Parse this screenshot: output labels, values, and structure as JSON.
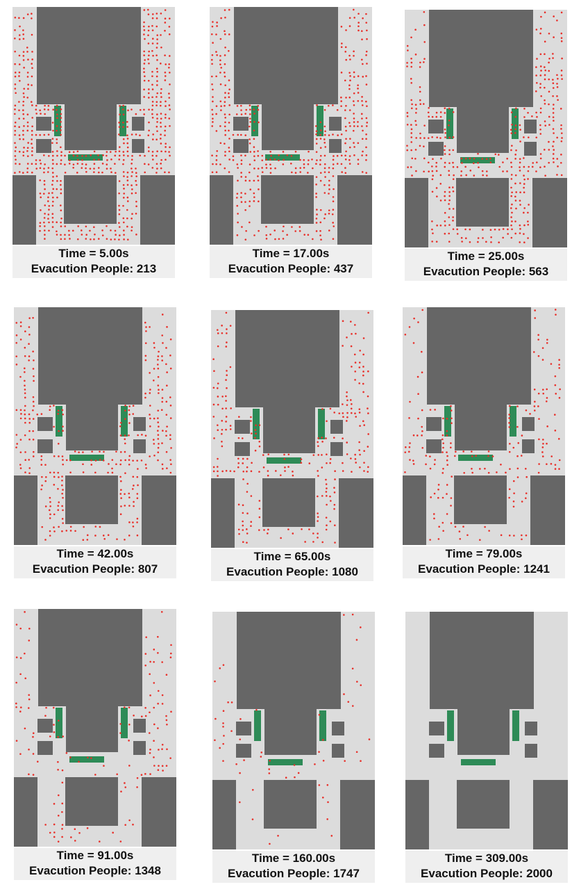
{
  "time_prefix": "Time = ",
  "people_prefix": "Evacution People: ",
  "colors": {
    "floor": "#dcdcdc",
    "obstacle": "#666666",
    "exit": "#2e8b57",
    "pedestrian": "#e8302a",
    "caption_bg": "#efefef"
  },
  "panels": [
    {
      "time_text": "5.00s",
      "people_count": "213",
      "remaining_level": 1.0
    },
    {
      "time_text": "17.00s",
      "people_count": "437",
      "remaining_level": 0.8
    },
    {
      "time_text": "25.00s",
      "people_count": "563",
      "remaining_level": 0.68
    },
    {
      "time_text": "42.00s",
      "people_count": "807",
      "remaining_level": 0.55
    },
    {
      "time_text": "65.00s",
      "people_count": "1080",
      "remaining_level": 0.42
    },
    {
      "time_text": "79.00s",
      "people_count": "1241",
      "remaining_level": 0.34
    },
    {
      "time_text": "91.00s",
      "people_count": "1348",
      "remaining_level": 0.28
    },
    {
      "time_text": "160.00s",
      "people_count": "1747",
      "remaining_level": 0.1
    },
    {
      "time_text": "309.00s",
      "people_count": "2000",
      "remaining_level": 0.0
    }
  ]
}
